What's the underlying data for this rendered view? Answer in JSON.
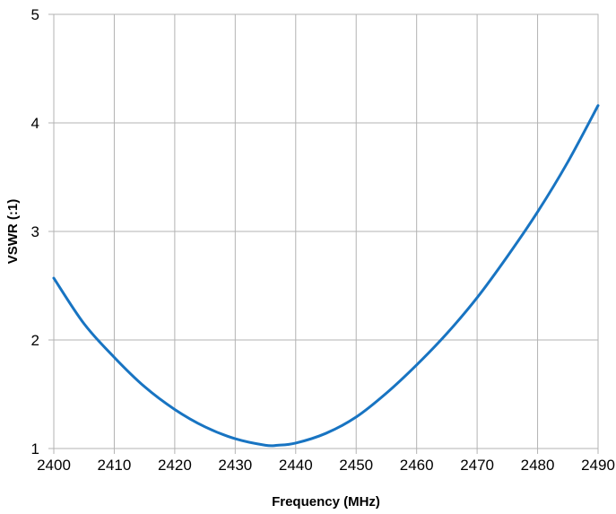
{
  "chart_data": {
    "type": "line",
    "title": "",
    "xlabel": "Frequency (MHz)",
    "ylabel": "VSWR (:1)",
    "xlim": [
      2400,
      2490
    ],
    "ylim": [
      1,
      5
    ],
    "x_ticks": [
      2400,
      2410,
      2420,
      2430,
      2440,
      2450,
      2460,
      2470,
      2480,
      2490
    ],
    "y_ticks": [
      1,
      2,
      3,
      4,
      5
    ],
    "grid": true,
    "legend": "none",
    "series": [
      {
        "color": "#1874c2",
        "x": [
          2400,
          2405,
          2410,
          2415,
          2420,
          2425,
          2430,
          2435,
          2437,
          2440,
          2445,
          2450,
          2455,
          2460,
          2465,
          2470,
          2475,
          2480,
          2485,
          2490
        ],
        "y": [
          2.57,
          2.15,
          1.84,
          1.57,
          1.36,
          1.2,
          1.09,
          1.03,
          1.03,
          1.05,
          1.14,
          1.29,
          1.51,
          1.77,
          2.06,
          2.39,
          2.77,
          3.18,
          3.64,
          4.16
        ]
      }
    ]
  }
}
